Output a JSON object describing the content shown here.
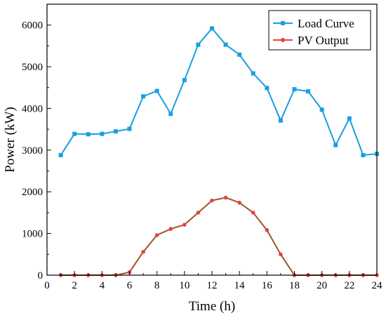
{
  "chart_data": {
    "type": "line",
    "title": "",
    "xlabel": "Time (h)",
    "ylabel": "Power (kW)",
    "xlim": [
      0,
      24
    ],
    "ylim": [
      0,
      6500
    ],
    "xticks": [
      0,
      2,
      4,
      6,
      8,
      10,
      12,
      14,
      16,
      18,
      20,
      22,
      24
    ],
    "yticks": [
      0,
      1000,
      2000,
      3000,
      4000,
      5000,
      6000
    ],
    "grid": false,
    "legend_position": "top-right",
    "x": [
      1,
      2,
      3,
      4,
      5,
      6,
      7,
      8,
      9,
      10,
      11,
      12,
      13,
      14,
      15,
      16,
      17,
      18,
      19,
      20,
      21,
      22,
      23,
      24
    ],
    "series": [
      {
        "name": "Load Curve",
        "color": "#1a9fe0",
        "marker": "square",
        "values": [
          2880,
          3390,
          3380,
          3390,
          3450,
          3510,
          4290,
          4420,
          3870,
          4680,
          5530,
          5920,
          5530,
          5290,
          4840,
          4490,
          3710,
          4460,
          4410,
          3970,
          3120,
          3760,
          2880,
          2910
        ]
      },
      {
        "name": "PV Output",
        "color": "#e8413c",
        "line_color": "#a0522d",
        "marker": "circle",
        "values": [
          0,
          0,
          0,
          0,
          0,
          70,
          560,
          960,
          1110,
          1210,
          1500,
          1790,
          1860,
          1740,
          1500,
          1080,
          500,
          0,
          0,
          0,
          0,
          0,
          0,
          0
        ]
      }
    ]
  }
}
